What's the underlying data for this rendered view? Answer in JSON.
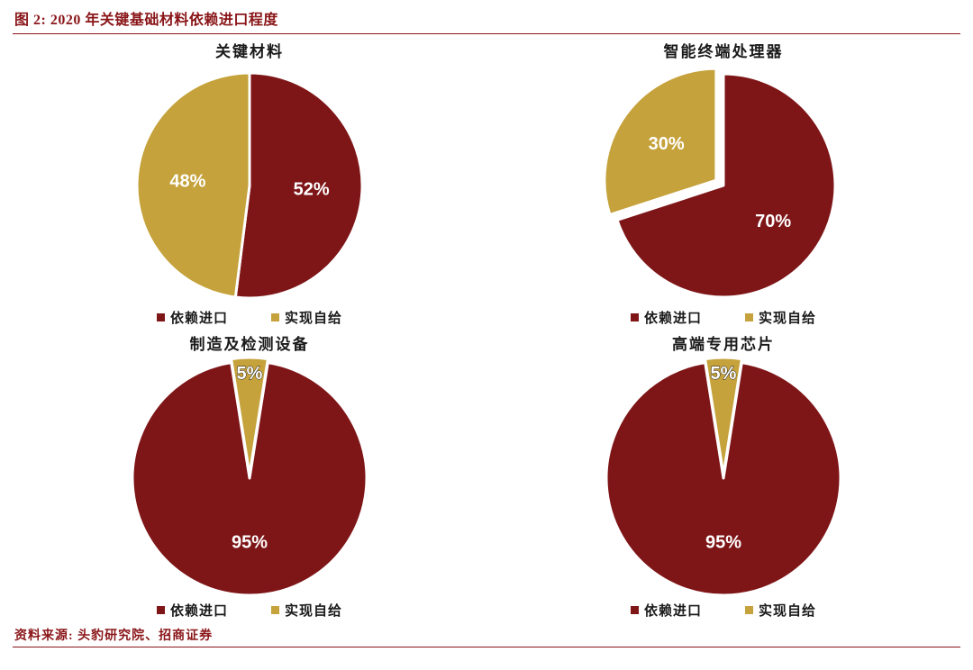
{
  "header": {
    "title": "图 2:  2020 年关键基础材料依赖进口程度"
  },
  "source": {
    "text": "资料来源: 头豹研究院、招商证券"
  },
  "colors": {
    "import": "#7E1517",
    "self": "#C5A23B",
    "accent": "#8a1619",
    "label_text": "#ffffff"
  },
  "legend": {
    "import_label": "依赖进口",
    "self_label": "实现自给"
  },
  "chart_data": [
    {
      "type": "pie",
      "title": "关键材料",
      "start_deg": 0,
      "radius": 125,
      "legend_labels": [
        "依赖进口",
        "实现自给"
      ],
      "legend_position": "bottom",
      "slices": [
        {
          "name": "依赖进口",
          "value": 52,
          "label": "52%",
          "color_key": "import",
          "explode": 0,
          "label_r": 0.55,
          "outline": false
        },
        {
          "name": "实现自给",
          "value": 48,
          "label": "48%",
          "color_key": "self",
          "explode": 0,
          "label_r": 0.55,
          "outline": false
        }
      ]
    },
    {
      "type": "pie",
      "title": "智能终端处理器",
      "start_deg": 0,
      "radius": 124,
      "legend_labels": [
        "依赖进口",
        "实现自给"
      ],
      "legend_position": "bottom",
      "slices": [
        {
          "name": "依赖进口",
          "value": 70,
          "label": "70%",
          "color_key": "import",
          "explode": 0,
          "label_r": 0.55,
          "outline": false
        },
        {
          "name": "实现自给",
          "value": 30,
          "label": "30%",
          "color_key": "self",
          "explode": 10,
          "label_r": 0.55,
          "outline": false
        }
      ]
    },
    {
      "type": "pie",
      "title": "制造及检测设备",
      "start_deg": 9,
      "radius": 130,
      "legend_labels": [
        "依赖进口",
        "实现自给"
      ],
      "legend_position": "bottom",
      "slices": [
        {
          "name": "依赖进口",
          "value": 95,
          "label": "95%",
          "color_key": "import",
          "explode": 0,
          "label_r": 0.55,
          "outline": false
        },
        {
          "name": "实现自给",
          "value": 5,
          "label": "5%",
          "color_key": "self",
          "explode": 4,
          "label_r": 0.86,
          "outline": true
        }
      ]
    },
    {
      "type": "pie",
      "title": "高端专用芯片",
      "start_deg": 9,
      "radius": 130,
      "legend_labels": [
        "依赖进口",
        "实现自给"
      ],
      "legend_position": "bottom",
      "slices": [
        {
          "name": "依赖进口",
          "value": 95,
          "label": "95%",
          "color_key": "import",
          "explode": 0,
          "label_r": 0.55,
          "outline": false
        },
        {
          "name": "实现自给",
          "value": 5,
          "label": "5%",
          "color_key": "self",
          "explode": 4,
          "label_r": 0.86,
          "outline": true
        }
      ]
    }
  ]
}
